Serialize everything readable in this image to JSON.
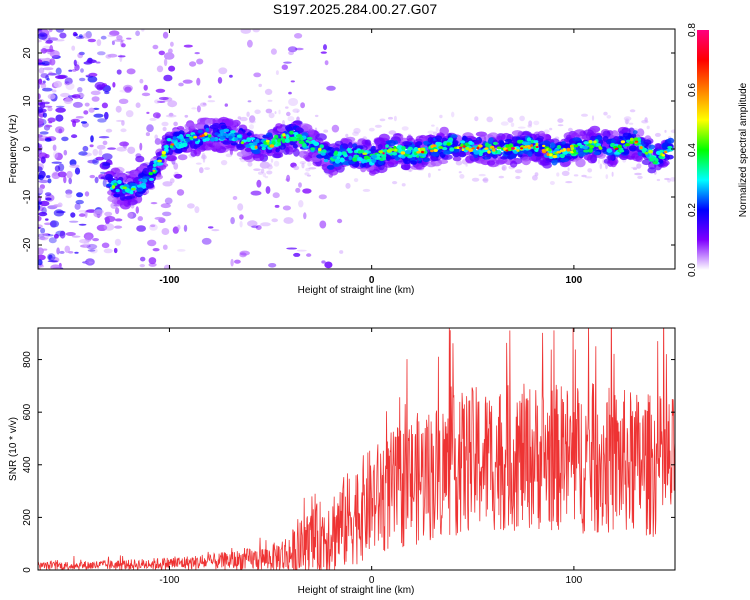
{
  "title": "S197.2025.284.00.27.G07",
  "colorbar": {
    "label": "Normalized spectral amplitude",
    "ticks": [
      "0.0",
      "0.2",
      "0.4",
      "0.6",
      "0.8"
    ],
    "range": [
      0,
      0.8
    ],
    "colors": [
      "#ffffff",
      "#7f00ff",
      "#0000ff",
      "#00ffff",
      "#00ff00",
      "#ffff00",
      "#ff8000",
      "#ff0000",
      "#ff007f"
    ]
  },
  "chart_data": [
    {
      "type": "heatmap",
      "title": "S197.2025.284.00.27.G07",
      "xlabel": "Height of straight line (km)",
      "ylabel": "Frequency (Hz)",
      "xlim": [
        -165,
        150
      ],
      "ylim": [
        -25,
        25
      ],
      "x_ticks": [
        "-100",
        "0",
        "100"
      ],
      "y_ticks": [
        "-20",
        "-10",
        "0",
        "10",
        "20"
      ],
      "ridge": {
        "description_points": [
          {
            "x": -130,
            "y": -7
          },
          {
            "x": -120,
            "y": -9
          },
          {
            "x": -110,
            "y": -6
          },
          {
            "x": -100,
            "y": 1
          },
          {
            "x": -90,
            "y": 2
          },
          {
            "x": -80,
            "y": 3
          },
          {
            "x": -70,
            "y": 3
          },
          {
            "x": -60,
            "y": 1
          },
          {
            "x": -50,
            "y": 1
          },
          {
            "x": -40,
            "y": 3
          },
          {
            "x": -30,
            "y": 1
          },
          {
            "x": -20,
            "y": -2
          },
          {
            "x": -10,
            "y": -1
          },
          {
            "x": 0,
            "y": -2
          },
          {
            "x": 10,
            "y": 0
          },
          {
            "x": 20,
            "y": -1
          },
          {
            "x": 30,
            "y": 0
          },
          {
            "x": 40,
            "y": 1
          },
          {
            "x": 50,
            "y": 0
          },
          {
            "x": 60,
            "y": 0
          },
          {
            "x": 70,
            "y": 0
          },
          {
            "x": 80,
            "y": 1
          },
          {
            "x": 90,
            "y": -1
          },
          {
            "x": 100,
            "y": 0
          },
          {
            "x": 110,
            "y": 1
          },
          {
            "x": 120,
            "y": 0
          },
          {
            "x": 130,
            "y": 2
          },
          {
            "x": 140,
            "y": -2
          },
          {
            "x": 148,
            "y": 0
          }
        ]
      }
    },
    {
      "type": "line",
      "xlabel": "Height of straight line (km)",
      "ylabel": "SNR (10 * v/v)",
      "xlim": [
        -165,
        150
      ],
      "ylim": [
        0,
        920
      ],
      "x_ticks": [
        "-100",
        "0",
        "100"
      ],
      "y_ticks": [
        "0",
        "200",
        "400",
        "600",
        "800"
      ],
      "series": [
        {
          "name": "SNR",
          "color": "#ee3333",
          "envelope": [
            {
              "x": -165,
              "mean": 15,
              "spread": 15
            },
            {
              "x": -120,
              "mean": 20,
              "spread": 20
            },
            {
              "x": -80,
              "mean": 30,
              "spread": 30
            },
            {
              "x": -50,
              "mean": 45,
              "spread": 50
            },
            {
              "x": -40,
              "mean": 60,
              "spread": 90
            },
            {
              "x": -30,
              "mean": 100,
              "spread": 130
            },
            {
              "x": -15,
              "mean": 170,
              "spread": 180
            },
            {
              "x": 0,
              "mean": 260,
              "spread": 210
            },
            {
              "x": 20,
              "mean": 340,
              "spread": 250
            },
            {
              "x": 50,
              "mean": 420,
              "spread": 280
            },
            {
              "x": 80,
              "mean": 430,
              "spread": 280
            },
            {
              "x": 110,
              "mean": 420,
              "spread": 290
            },
            {
              "x": 150,
              "mean": 390,
              "spread": 270
            }
          ]
        }
      ]
    }
  ]
}
